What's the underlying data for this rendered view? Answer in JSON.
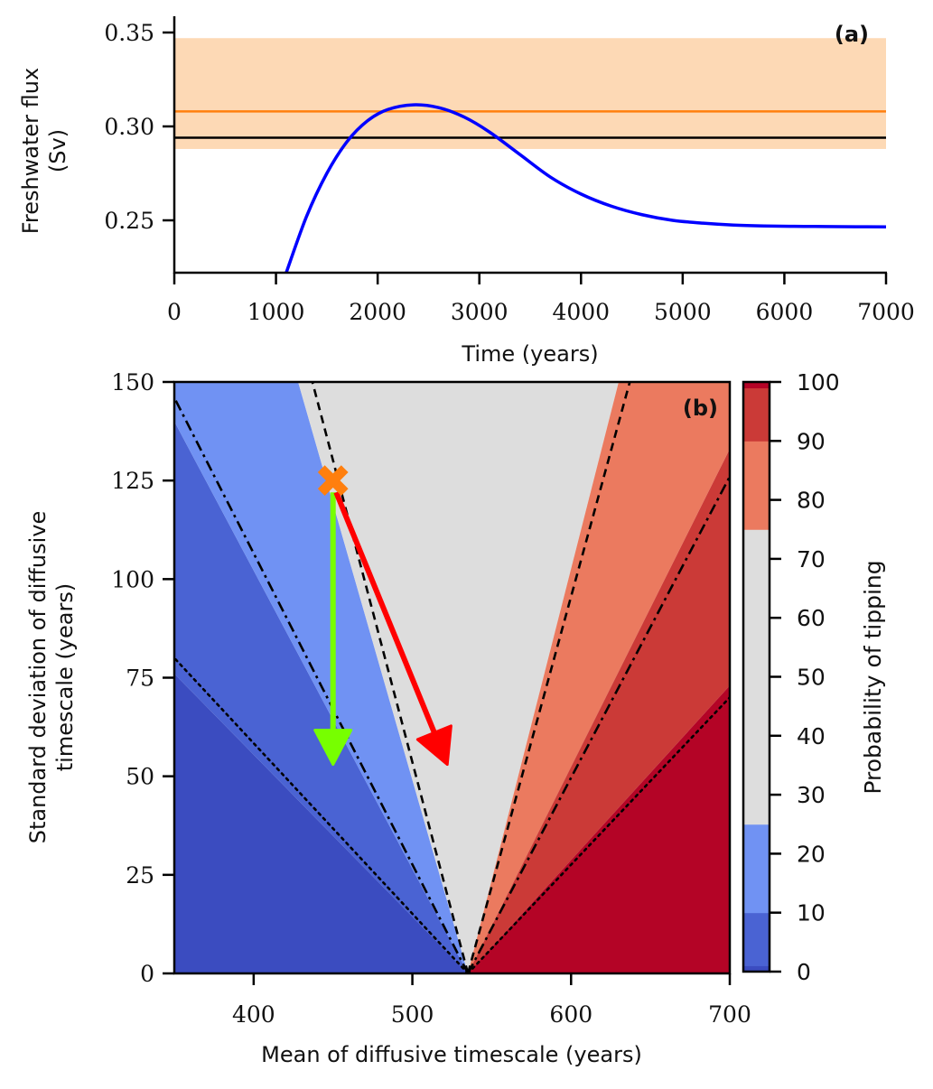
{
  "chart_data": [
    {
      "panel": "a",
      "type": "line",
      "panel_label": "(a)",
      "xlabel": "Time (years)",
      "ylabel_lines": [
        "Freshwater flux",
        "(Sv)"
      ],
      "xlim": [
        0,
        7000
      ],
      "ylim": [
        0.222,
        0.356
      ],
      "xticks": [
        0,
        1000,
        2000,
        3000,
        4000,
        5000,
        6000,
        7000
      ],
      "xtick_labels": [
        "0",
        "1000",
        "2000",
        "3000",
        "4000",
        "5000",
        "6000",
        "7000"
      ],
      "yticks": [
        0.25,
        0.3,
        0.35
      ],
      "ytick_labels": [
        "0.25",
        "0.30",
        "0.35"
      ],
      "band": {
        "name": "uncertainty band",
        "y0": 0.288,
        "y1": 0.347,
        "color": "#fdd9b5"
      },
      "hlines": [
        {
          "name": "orange-threshold",
          "y": 0.308,
          "color": "#ff7f0e"
        },
        {
          "name": "black-threshold",
          "y": 0.294,
          "color": "#000000"
        }
      ],
      "series": [
        {
          "name": "freshwater-flux",
          "color": "#0000ff",
          "x": [
            1100,
            1300,
            1500,
            1700,
            1900,
            2100,
            2350,
            2600,
            2850,
            3100,
            3400,
            3700,
            4000,
            4300,
            4600,
            4900,
            5200,
            5500,
            5800,
            6100,
            6400,
            6700,
            7000
          ],
          "y": [
            0.222,
            0.252,
            0.275,
            0.292,
            0.303,
            0.309,
            0.3115,
            0.31,
            0.305,
            0.297,
            0.285,
            0.273,
            0.264,
            0.2575,
            0.253,
            0.25,
            0.2485,
            0.2475,
            0.247,
            0.2468,
            0.2467,
            0.2466,
            0.2465
          ]
        }
      ]
    },
    {
      "panel": "b",
      "type": "heatmap",
      "panel_label": "(b)",
      "xlabel": "Mean of diffusive timescale (years)",
      "ylabel_lines": [
        "Standard deviation of diffusive",
        "timescale (years)"
      ],
      "xlim": [
        350,
        700
      ],
      "ylim": [
        0,
        150
      ],
      "xticks": [
        400,
        500,
        600,
        700
      ],
      "xtick_labels": [
        "400",
        "500",
        "600",
        "700"
      ],
      "yticks": [
        0,
        25,
        50,
        75,
        100,
        125,
        150
      ],
      "ytick_labels": [
        "0",
        "25",
        "50",
        "75",
        "100",
        "125",
        "150"
      ],
      "apex": {
        "x": 535,
        "y": 0
      },
      "contour_levels": [
        0,
        1,
        10,
        25,
        75,
        90,
        99,
        100
      ],
      "contour_colors": [
        "#3b4cc0",
        "#4a63d3",
        "#7092f3",
        "#dddddd",
        "#eb7a5f",
        "#cb3a37",
        "#b40426"
      ],
      "region_boundaries_at_top_x": {
        "comment": "x-position (data units) where each probability contour crosses the top (sigma=150) or the left/right edge value at given sigma",
        "p1_left": {
          "x": 350,
          "y": 76
        },
        "p10_left": {
          "x": 350,
          "y": 140
        },
        "p25_left": {
          "x": 428,
          "y": 150
        },
        "p75_right": {
          "x": 630,
          "y": 150
        },
        "p90_right": {
          "x": 700,
          "y": 133
        },
        "p99_right": {
          "x": 700,
          "y": 73
        }
      },
      "reference_lines": [
        {
          "name": "dashed-left",
          "style": "dashed",
          "from": [
            535,
            0
          ],
          "to": [
            437,
            150
          ]
        },
        {
          "name": "dashed-right",
          "style": "dashed",
          "from": [
            535,
            0
          ],
          "to": [
            637,
            150
          ]
        },
        {
          "name": "dashdot-left",
          "style": "dashdot",
          "from": [
            535,
            0
          ],
          "to": [
            350,
            146
          ]
        },
        {
          "name": "dashdot-right",
          "style": "dashdot",
          "from": [
            535,
            0
          ],
          "to": [
            700,
            126
          ]
        },
        {
          "name": "dotted-left",
          "style": "dotted",
          "from": [
            535,
            0
          ],
          "to": [
            350,
            80
          ]
        },
        {
          "name": "dotted-right",
          "style": "dotted",
          "from": [
            535,
            0
          ],
          "to": [
            700,
            70
          ]
        }
      ],
      "marker": {
        "name": "current-estimate",
        "shape": "X",
        "x": 450,
        "y": 125,
        "color": "#ff7f0e"
      },
      "arrows": [
        {
          "name": "green-arrow",
          "color": "#77ff00",
          "from": [
            450,
            122
          ],
          "to": [
            450,
            53
          ]
        },
        {
          "name": "red-arrow",
          "color": "#ff0000",
          "from": [
            452,
            122
          ],
          "to": [
            522,
            53
          ]
        }
      ],
      "colorbar": {
        "label": "Probability of tipping",
        "range": [
          0,
          100
        ],
        "ticks": [
          0,
          10,
          20,
          30,
          40,
          50,
          60,
          70,
          80,
          90,
          100
        ],
        "tick_labels": [
          "0",
          "10",
          "20",
          "30",
          "40",
          "50",
          "60",
          "70",
          "80",
          "90",
          "100"
        ],
        "bands": [
          {
            "from": 0,
            "to": 1,
            "color": "#3b4cc0"
          },
          {
            "from": 1,
            "to": 10,
            "color": "#4a63d3"
          },
          {
            "from": 10,
            "to": 25,
            "color": "#7092f3"
          },
          {
            "from": 25,
            "to": 75,
            "color": "#dddddd"
          },
          {
            "from": 75,
            "to": 90,
            "color": "#eb7a5f"
          },
          {
            "from": 90,
            "to": 99,
            "color": "#cb3a37"
          },
          {
            "from": 99,
            "to": 100,
            "color": "#b40426"
          }
        ]
      }
    }
  ]
}
